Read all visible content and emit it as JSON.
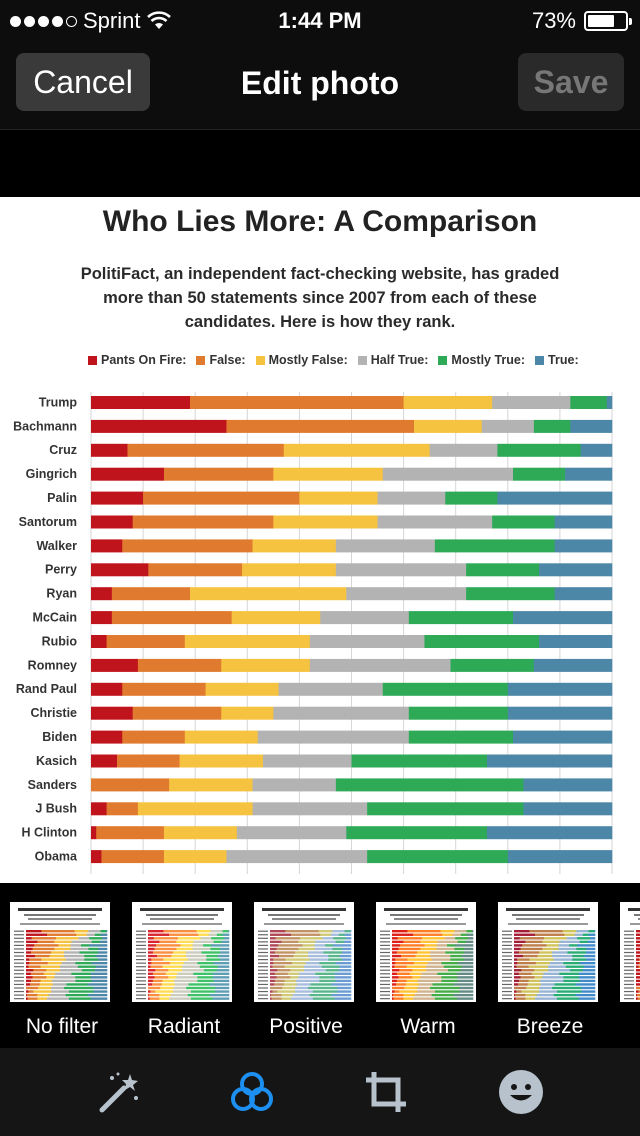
{
  "status": {
    "carrier": "Sprint",
    "time": "1:44 PM",
    "battery_percent": "73%",
    "battery_level": 0.73
  },
  "nav": {
    "cancel_label": "Cancel",
    "title": "Edit photo",
    "save_label": "Save"
  },
  "chart_data": {
    "type": "bar",
    "stacked": true,
    "orientation": "horizontal",
    "title": "Who Lies More: A Comparison",
    "subtitle": "PolitiFact, an independent fact-checking website, has graded more than 50 statements since 2007 from each of these candidates. Here is how they rank.",
    "legend_placement": "top",
    "categories": [
      "Trump",
      "Bachmann",
      "Cruz",
      "Gingrich",
      "Palin",
      "Santorum",
      "Walker",
      "Perry",
      "Ryan",
      "McCain",
      "Rubio",
      "Romney",
      "Rand Paul",
      "Christie",
      "Biden",
      "Kasich",
      "Sanders",
      "J Bush",
      "H Clinton",
      "Obama"
    ],
    "series": [
      {
        "name": "Pants On Fire:",
        "color": "#c0141c",
        "values": [
          19,
          26,
          7,
          14,
          10,
          8,
          6,
          11,
          4,
          4,
          3,
          9,
          6,
          8,
          6,
          5,
          0,
          3,
          1,
          2
        ]
      },
      {
        "name": "False:",
        "color": "#e07a2e",
        "values": [
          41,
          36,
          30,
          21,
          30,
          27,
          25,
          18,
          15,
          23,
          15,
          16,
          16,
          17,
          12,
          12,
          15,
          6,
          13,
          12
        ]
      },
      {
        "name": "Mostly False:",
        "color": "#f6c340",
        "values": [
          17,
          13,
          28,
          21,
          15,
          20,
          16,
          18,
          30,
          17,
          24,
          17,
          14,
          10,
          14,
          16,
          16,
          22,
          14,
          12
        ]
      },
      {
        "name": "Half True:",
        "color": "#b3b3b3",
        "values": [
          15,
          10,
          13,
          25,
          13,
          22,
          19,
          25,
          23,
          17,
          22,
          27,
          20,
          26,
          29,
          17,
          16,
          22,
          21,
          27
        ]
      },
      {
        "name": "Mostly True:",
        "color": "#2eaa57",
        "values": [
          7,
          7,
          16,
          10,
          10,
          12,
          23,
          14,
          17,
          20,
          22,
          16,
          24,
          19,
          20,
          26,
          36,
          30,
          27,
          27
        ]
      },
      {
        "name": "True:",
        "color": "#4c87a8",
        "values": [
          1,
          8,
          6,
          9,
          22,
          11,
          11,
          14,
          11,
          19,
          14,
          15,
          20,
          20,
          19,
          24,
          17,
          17,
          24,
          20
        ]
      }
    ],
    "xlim": [
      0,
      100
    ]
  },
  "filters": [
    {
      "label": "No filter",
      "tint": "none"
    },
    {
      "label": "Radiant",
      "tint": "radiant"
    },
    {
      "label": "Positive",
      "tint": "positive"
    },
    {
      "label": "Warm",
      "tint": "warm"
    },
    {
      "label": "Breeze",
      "tint": "breeze"
    }
  ],
  "toolbar": {
    "items": [
      {
        "icon": "magic-wand-icon",
        "color": "#b7c2cc"
      },
      {
        "icon": "filters-icon",
        "color": "#1d8ff0",
        "active": true
      },
      {
        "icon": "crop-icon",
        "color": "#b7c2cc"
      },
      {
        "icon": "sticker-icon",
        "color": "#b7c2cc"
      }
    ]
  }
}
